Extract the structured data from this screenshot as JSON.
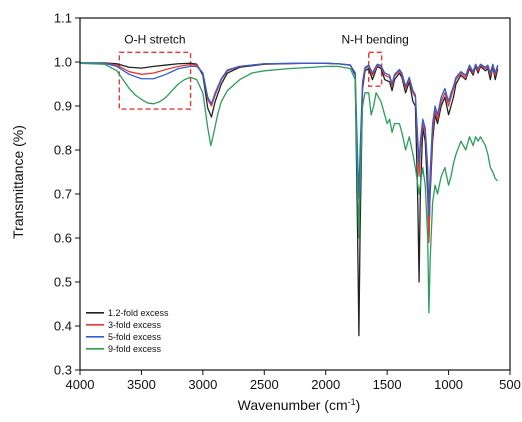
{
  "colors": {
    "accent_box": "#e53935",
    "axis": "#111111"
  },
  "chart_data": {
    "type": "line",
    "title": "",
    "xlabel_main": "Wavenumber (cm",
    "xlabel_sup": "-1",
    "xlabel_close": ")",
    "ylabel": "Transmittance (%)",
    "xlim": [
      4000,
      500
    ],
    "ylim": [
      0.3,
      1.1
    ],
    "x_ticks": [
      4000,
      3500,
      3000,
      2500,
      2000,
      1500,
      1000,
      500
    ],
    "y_ticks": [
      0.3,
      0.4,
      0.5,
      0.6,
      0.7,
      0.8,
      0.9,
      1.0,
      1.1
    ],
    "x_tick_labels": [
      "4000",
      "3500",
      "3000",
      "2500",
      "2000",
      "1500",
      "1000",
      "500"
    ],
    "y_tick_labels": [
      "0.3",
      "0.4",
      "0.5",
      "0.6",
      "0.7",
      "0.8",
      "0.9",
      "1.0",
      "1.1"
    ],
    "legend_position": "bottom-left",
    "annotations": [
      {
        "label": "O-H stretch",
        "x_range": [
          3680,
          3100
        ],
        "y_range": [
          0.893,
          1.022
        ]
      },
      {
        "label": "N-H bending",
        "x_range": [
          1650,
          1545
        ],
        "y_range": [
          0.945,
          1.022
        ]
      }
    ],
    "series": [
      {
        "name": "1.2-fold excess",
        "color": "#222222",
        "points": [
          [
            4000,
            0.998
          ],
          [
            3800,
            0.998
          ],
          [
            3700,
            0.996
          ],
          [
            3600,
            0.988
          ],
          [
            3500,
            0.986
          ],
          [
            3400,
            0.99
          ],
          [
            3300,
            0.993
          ],
          [
            3200,
            0.996
          ],
          [
            3100,
            0.997
          ],
          [
            3050,
            0.995
          ],
          [
            3000,
            0.97
          ],
          [
            2960,
            0.895
          ],
          [
            2930,
            0.875
          ],
          [
            2900,
            0.91
          ],
          [
            2850,
            0.95
          ],
          [
            2800,
            0.975
          ],
          [
            2700,
            0.988
          ],
          [
            2500,
            0.995
          ],
          [
            2200,
            0.997
          ],
          [
            2000,
            0.997
          ],
          [
            1900,
            0.996
          ],
          [
            1800,
            0.993
          ],
          [
            1760,
            0.97
          ],
          [
            1740,
            0.6
          ],
          [
            1730,
            0.378
          ],
          [
            1720,
            0.62
          ],
          [
            1700,
            0.94
          ],
          [
            1680,
            0.98
          ],
          [
            1650,
            0.985
          ],
          [
            1620,
            0.96
          ],
          [
            1600,
            0.975
          ],
          [
            1580,
            0.99
          ],
          [
            1550,
            0.985
          ],
          [
            1520,
            0.96
          ],
          [
            1480,
            0.955
          ],
          [
            1460,
            0.935
          ],
          [
            1440,
            0.96
          ],
          [
            1400,
            0.975
          ],
          [
            1380,
            0.965
          ],
          [
            1350,
            0.93
          ],
          [
            1320,
            0.955
          ],
          [
            1290,
            0.91
          ],
          [
            1270,
            0.9
          ],
          [
            1250,
            0.675
          ],
          [
            1240,
            0.5
          ],
          [
            1230,
            0.7
          ],
          [
            1210,
            0.85
          ],
          [
            1190,
            0.82
          ],
          [
            1170,
            0.7
          ],
          [
            1160,
            0.6
          ],
          [
            1150,
            0.7
          ],
          [
            1130,
            0.82
          ],
          [
            1110,
            0.88
          ],
          [
            1090,
            0.86
          ],
          [
            1060,
            0.9
          ],
          [
            1030,
            0.92
          ],
          [
            1000,
            0.88
          ],
          [
            980,
            0.9
          ],
          [
            960,
            0.92
          ],
          [
            940,
            0.95
          ],
          [
            900,
            0.97
          ],
          [
            860,
            0.96
          ],
          [
            830,
            0.985
          ],
          [
            800,
            0.97
          ],
          [
            780,
            0.99
          ],
          [
            760,
            0.975
          ],
          [
            740,
            0.99
          ],
          [
            700,
            0.98
          ],
          [
            680,
            0.985
          ],
          [
            660,
            0.96
          ],
          [
            640,
            0.99
          ],
          [
            620,
            0.96
          ],
          [
            600,
            0.985
          ]
        ]
      },
      {
        "name": "3-fold excess",
        "color": "#e53935",
        "points": [
          [
            4000,
            0.997
          ],
          [
            3800,
            0.997
          ],
          [
            3700,
            0.993
          ],
          [
            3600,
            0.978
          ],
          [
            3500,
            0.972
          ],
          [
            3400,
            0.975
          ],
          [
            3300,
            0.983
          ],
          [
            3200,
            0.99
          ],
          [
            3100,
            0.994
          ],
          [
            3050,
            0.993
          ],
          [
            3000,
            0.975
          ],
          [
            2960,
            0.915
          ],
          [
            2930,
            0.9
          ],
          [
            2900,
            0.925
          ],
          [
            2850,
            0.96
          ],
          [
            2800,
            0.98
          ],
          [
            2700,
            0.99
          ],
          [
            2500,
            0.996
          ],
          [
            2200,
            0.997
          ],
          [
            2000,
            0.997
          ],
          [
            1900,
            0.996
          ],
          [
            1800,
            0.993
          ],
          [
            1760,
            0.975
          ],
          [
            1740,
            0.72
          ],
          [
            1730,
            0.6
          ],
          [
            1720,
            0.75
          ],
          [
            1700,
            0.95
          ],
          [
            1680,
            0.985
          ],
          [
            1650,
            0.99
          ],
          [
            1620,
            0.97
          ],
          [
            1600,
            0.98
          ],
          [
            1580,
            0.993
          ],
          [
            1550,
            0.99
          ],
          [
            1520,
            0.97
          ],
          [
            1480,
            0.965
          ],
          [
            1460,
            0.945
          ],
          [
            1440,
            0.968
          ],
          [
            1400,
            0.98
          ],
          [
            1380,
            0.97
          ],
          [
            1350,
            0.94
          ],
          [
            1320,
            0.96
          ],
          [
            1290,
            0.93
          ],
          [
            1270,
            0.92
          ],
          [
            1250,
            0.8
          ],
          [
            1240,
            0.74
          ],
          [
            1230,
            0.8
          ],
          [
            1210,
            0.86
          ],
          [
            1190,
            0.84
          ],
          [
            1170,
            0.75
          ],
          [
            1160,
            0.59
          ],
          [
            1150,
            0.72
          ],
          [
            1130,
            0.84
          ],
          [
            1110,
            0.89
          ],
          [
            1090,
            0.87
          ],
          [
            1060,
            0.91
          ],
          [
            1030,
            0.93
          ],
          [
            1000,
            0.9
          ],
          [
            980,
            0.92
          ],
          [
            960,
            0.94
          ],
          [
            940,
            0.96
          ],
          [
            900,
            0.975
          ],
          [
            860,
            0.965
          ],
          [
            830,
            0.99
          ],
          [
            800,
            0.975
          ],
          [
            780,
            0.993
          ],
          [
            760,
            0.98
          ],
          [
            740,
            0.993
          ],
          [
            700,
            0.985
          ],
          [
            680,
            0.99
          ],
          [
            660,
            0.97
          ],
          [
            640,
            0.993
          ],
          [
            620,
            0.97
          ],
          [
            600,
            0.99
          ]
        ]
      },
      {
        "name": "5-fold excess",
        "color": "#2f5fd0",
        "points": [
          [
            4000,
            0.998
          ],
          [
            3800,
            0.997
          ],
          [
            3700,
            0.99
          ],
          [
            3600,
            0.972
          ],
          [
            3500,
            0.962
          ],
          [
            3400,
            0.962
          ],
          [
            3300,
            0.972
          ],
          [
            3200,
            0.985
          ],
          [
            3100,
            0.99
          ],
          [
            3050,
            0.99
          ],
          [
            3000,
            0.975
          ],
          [
            2960,
            0.92
          ],
          [
            2930,
            0.905
          ],
          [
            2900,
            0.93
          ],
          [
            2850,
            0.962
          ],
          [
            2800,
            0.982
          ],
          [
            2700,
            0.99
          ],
          [
            2500,
            0.996
          ],
          [
            2200,
            0.997
          ],
          [
            2000,
            0.997
          ],
          [
            1900,
            0.996
          ],
          [
            1800,
            0.993
          ],
          [
            1760,
            0.975
          ],
          [
            1740,
            0.78
          ],
          [
            1730,
            0.69
          ],
          [
            1720,
            0.8
          ],
          [
            1700,
            0.955
          ],
          [
            1680,
            0.988
          ],
          [
            1650,
            0.993
          ],
          [
            1620,
            0.975
          ],
          [
            1600,
            0.985
          ],
          [
            1580,
            0.995
          ],
          [
            1550,
            0.992
          ],
          [
            1520,
            0.975
          ],
          [
            1480,
            0.97
          ],
          [
            1460,
            0.95
          ],
          [
            1440,
            0.972
          ],
          [
            1400,
            0.983
          ],
          [
            1380,
            0.975
          ],
          [
            1350,
            0.945
          ],
          [
            1320,
            0.965
          ],
          [
            1290,
            0.935
          ],
          [
            1270,
            0.925
          ],
          [
            1250,
            0.82
          ],
          [
            1240,
            0.77
          ],
          [
            1230,
            0.82
          ],
          [
            1210,
            0.87
          ],
          [
            1190,
            0.85
          ],
          [
            1170,
            0.76
          ],
          [
            1160,
            0.65
          ],
          [
            1150,
            0.75
          ],
          [
            1130,
            0.86
          ],
          [
            1110,
            0.9
          ],
          [
            1090,
            0.88
          ],
          [
            1060,
            0.92
          ],
          [
            1030,
            0.94
          ],
          [
            1000,
            0.91
          ],
          [
            980,
            0.93
          ],
          [
            960,
            0.945
          ],
          [
            940,
            0.965
          ],
          [
            900,
            0.978
          ],
          [
            860,
            0.97
          ],
          [
            830,
            0.993
          ],
          [
            800,
            0.978
          ],
          [
            780,
            0.995
          ],
          [
            760,
            0.985
          ],
          [
            740,
            0.995
          ],
          [
            700,
            0.988
          ],
          [
            680,
            0.993
          ],
          [
            660,
            0.975
          ],
          [
            640,
            0.995
          ],
          [
            620,
            0.975
          ],
          [
            600,
            0.993
          ]
        ]
      },
      {
        "name": "9-fold excess",
        "color": "#2a9d5c",
        "points": [
          [
            4000,
            0.997
          ],
          [
            3800,
            0.995
          ],
          [
            3700,
            0.98
          ],
          [
            3650,
            0.96
          ],
          [
            3600,
            0.94
          ],
          [
            3550,
            0.925
          ],
          [
            3500,
            0.915
          ],
          [
            3450,
            0.907
          ],
          [
            3400,
            0.905
          ],
          [
            3350,
            0.91
          ],
          [
            3300,
            0.92
          ],
          [
            3250,
            0.935
          ],
          [
            3200,
            0.95
          ],
          [
            3150,
            0.96
          ],
          [
            3100,
            0.965
          ],
          [
            3050,
            0.96
          ],
          [
            3000,
            0.93
          ],
          [
            2960,
            0.85
          ],
          [
            2935,
            0.81
          ],
          [
            2910,
            0.84
          ],
          [
            2880,
            0.88
          ],
          [
            2850,
            0.91
          ],
          [
            2800,
            0.935
          ],
          [
            2700,
            0.96
          ],
          [
            2600,
            0.975
          ],
          [
            2500,
            0.98
          ],
          [
            2300,
            0.985
          ],
          [
            2100,
            0.988
          ],
          [
            2000,
            0.99
          ],
          [
            1900,
            0.99
          ],
          [
            1800,
            0.985
          ],
          [
            1760,
            0.96
          ],
          [
            1740,
            0.7
          ],
          [
            1730,
            0.6
          ],
          [
            1720,
            0.72
          ],
          [
            1700,
            0.9
          ],
          [
            1680,
            0.93
          ],
          [
            1650,
            0.93
          ],
          [
            1630,
            0.88
          ],
          [
            1610,
            0.9
          ],
          [
            1590,
            0.93
          ],
          [
            1570,
            0.92
          ],
          [
            1550,
            0.91
          ],
          [
            1520,
            0.88
          ],
          [
            1500,
            0.86
          ],
          [
            1480,
            0.87
          ],
          [
            1460,
            0.84
          ],
          [
            1440,
            0.86
          ],
          [
            1400,
            0.86
          ],
          [
            1380,
            0.84
          ],
          [
            1350,
            0.8
          ],
          [
            1320,
            0.83
          ],
          [
            1290,
            0.79
          ],
          [
            1270,
            0.76
          ],
          [
            1250,
            0.72
          ],
          [
            1240,
            0.7
          ],
          [
            1230,
            0.72
          ],
          [
            1210,
            0.76
          ],
          [
            1190,
            0.72
          ],
          [
            1170,
            0.6
          ],
          [
            1160,
            0.43
          ],
          [
            1150,
            0.55
          ],
          [
            1130,
            0.68
          ],
          [
            1110,
            0.72
          ],
          [
            1090,
            0.7
          ],
          [
            1060,
            0.74
          ],
          [
            1030,
            0.76
          ],
          [
            1000,
            0.72
          ],
          [
            980,
            0.74
          ],
          [
            960,
            0.77
          ],
          [
            940,
            0.79
          ],
          [
            900,
            0.82
          ],
          [
            860,
            0.8
          ],
          [
            830,
            0.83
          ],
          [
            800,
            0.81
          ],
          [
            780,
            0.83
          ],
          [
            760,
            0.82
          ],
          [
            740,
            0.83
          ],
          [
            700,
            0.81
          ],
          [
            680,
            0.79
          ],
          [
            660,
            0.76
          ],
          [
            640,
            0.75
          ],
          [
            620,
            0.735
          ],
          [
            600,
            0.73
          ]
        ]
      }
    ]
  }
}
